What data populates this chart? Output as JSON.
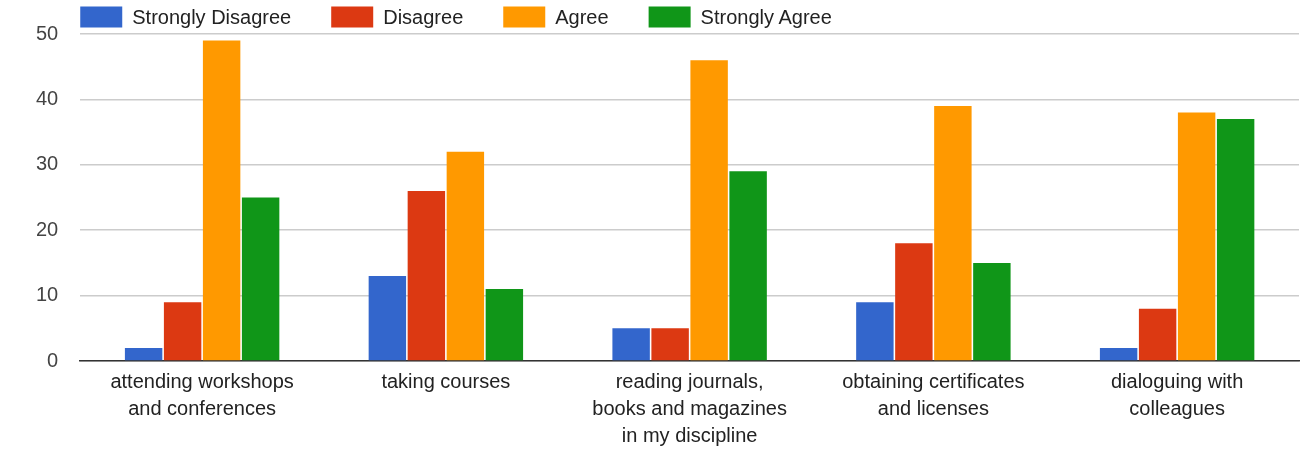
{
  "chart_data": {
    "type": "bar",
    "categories": [
      "attending workshops\nand conferences",
      "taking courses",
      "reading journals,\nbooks and magazines\nin my discipline",
      "obtaining certificates\nand licenses",
      "dialoguing with\ncolleagues"
    ],
    "series": [
      {
        "name": "Strongly Disagree",
        "color": "#3366cc",
        "values": [
          2,
          13,
          5,
          9,
          2
        ]
      },
      {
        "name": "Disagree",
        "color": "#dc3912",
        "values": [
          9,
          26,
          5,
          18,
          8
        ]
      },
      {
        "name": "Agree",
        "color": "#ff9900",
        "values": [
          49,
          32,
          46,
          39,
          38
        ]
      },
      {
        "name": "Strongly Agree",
        "color": "#109618",
        "values": [
          25,
          11,
          29,
          15,
          37
        ]
      }
    ],
    "ylim": [
      0,
      50
    ],
    "yticks": [
      0,
      10,
      20,
      30,
      40,
      50
    ],
    "grid": "y",
    "legend": "top left"
  }
}
